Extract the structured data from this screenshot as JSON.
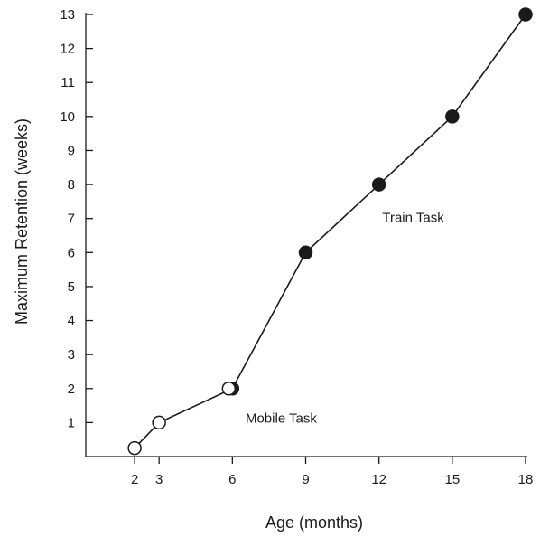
{
  "chart_data": {
    "type": "line",
    "xlabel": "Age (months)",
    "ylabel": "Maximum Retention (weeks)",
    "xlim": [
      0,
      18
    ],
    "ylim": [
      0,
      13
    ],
    "xticks": [
      2,
      3,
      6,
      9,
      12,
      15,
      18
    ],
    "yticks": [
      1,
      2,
      3,
      4,
      5,
      6,
      7,
      8,
      9,
      10,
      11,
      12,
      13
    ],
    "grid": false,
    "series": [
      {
        "x": [
          2,
          3,
          6,
          6,
          9,
          12,
          15,
          18
        ],
        "y": [
          0.25,
          1,
          2,
          2,
          6,
          8,
          10,
          13
        ],
        "markers": [
          "open",
          "open",
          "filled",
          "open",
          "filled",
          "filled",
          "filled",
          "filled"
        ]
      }
    ],
    "annotations": [
      {
        "text": "Mobile Task",
        "x": 8.0,
        "y": 1.0
      },
      {
        "text": "Train Task",
        "x": 13.4,
        "y": 6.9
      }
    ],
    "colors": {
      "line": "#1a1a1a",
      "filled_marker": "#1a1a1a",
      "open_marker": "#ffffff"
    }
  }
}
